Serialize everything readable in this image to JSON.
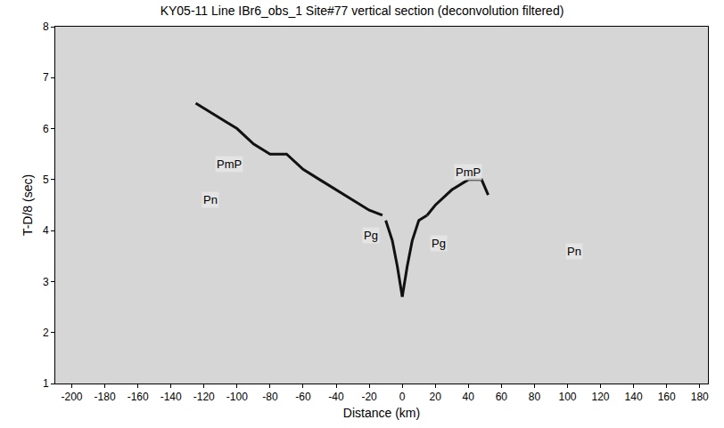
{
  "chart_data": {
    "type": "line",
    "title": "KY05-11 Line IBr6_obs_1 Site#77 vertical section (deconvolution filtered)",
    "x_label": "Distance (km)",
    "y_label": "T-D/8 (sec)",
    "xlim": [
      -210,
      185
    ],
    "xticks": [
      -200,
      -180,
      -160,
      -140,
      -120,
      -100,
      -80,
      -60,
      -40,
      -20,
      0,
      20,
      40,
      60,
      80,
      100,
      120,
      140,
      160,
      180
    ],
    "ylim": [
      1,
      8
    ],
    "yticks": [
      1,
      2,
      3,
      4,
      5,
      6,
      7,
      8
    ],
    "grid": false,
    "series": [
      {
        "name": "PmP",
        "color": "#111111",
        "line_style": "solid",
        "x": [
          -125,
          -110,
          -100,
          -90,
          -80,
          -70,
          -60,
          -50,
          -40,
          -30,
          -20,
          -12
        ],
        "values": [
          6.5,
          6.2,
          6.0,
          5.7,
          5.5,
          5.5,
          5.2,
          5.0,
          4.8,
          4.6,
          4.4,
          4.3
        ]
      },
      {
        "name": "Pg",
        "color": "#111111",
        "line_style": "solid",
        "x": [
          -10,
          -6,
          -3,
          0
        ],
        "values": [
          4.2,
          3.8,
          3.3,
          2.7
        ]
      },
      {
        "name": "Pg",
        "color": "#111111",
        "line_style": "solid",
        "x": [
          0,
          3,
          6,
          10,
          15
        ],
        "values": [
          2.7,
          3.3,
          3.8,
          4.2,
          4.3
        ]
      },
      {
        "name": "PmP",
        "color": "#111111",
        "line_style": "solid",
        "x": [
          15,
          20,
          30,
          40,
          48,
          52
        ],
        "values": [
          4.3,
          4.5,
          4.8,
          5.0,
          5.0,
          4.7
        ]
      }
    ],
    "annotations": [
      {
        "text": "PmP",
        "x": -105,
        "y": 5.3
      },
      {
        "text": "Pn",
        "x": -116,
        "y": 4.6
      },
      {
        "text": "Pg",
        "x": -19,
        "y": 3.9
      },
      {
        "text": "Pg",
        "x": 22,
        "y": 3.75
      },
      {
        "text": "PmP",
        "x": 40,
        "y": 5.15
      },
      {
        "text": "Pn",
        "x": 104,
        "y": 3.6
      }
    ]
  }
}
